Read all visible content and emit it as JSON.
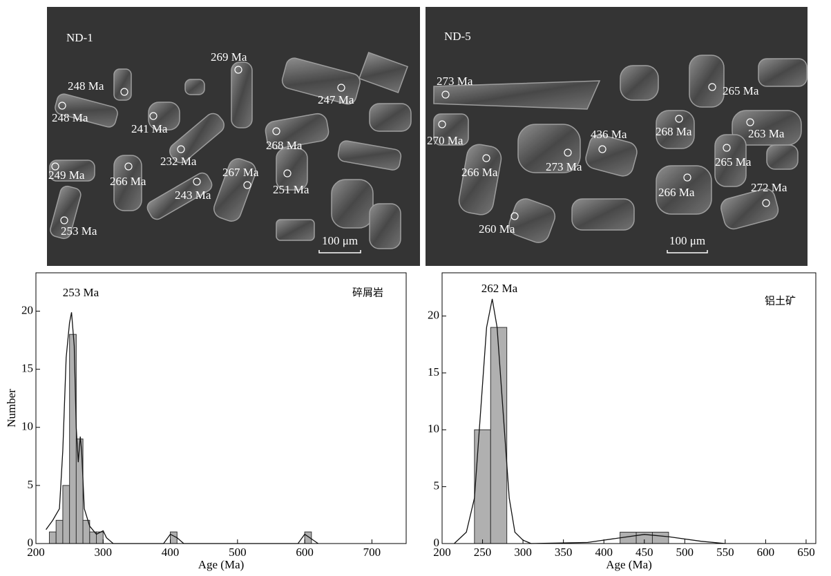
{
  "images": [
    {
      "label": "ND-1",
      "scale": "100 μm",
      "spots": [
        "248 Ma",
        "248 Ma",
        "269 Ma",
        "247 Ma",
        "241 Ma",
        "232 Ma",
        "268 Ma",
        "249 Ma",
        "266 Ma",
        "267 Ma",
        "243 Ma",
        "251 Ma",
        "253 Ma"
      ]
    },
    {
      "label": "ND-5",
      "scale": "100 μm",
      "spots": [
        "273 Ma",
        "265 Ma",
        "270 Ma",
        "268 Ma",
        "263 Ma",
        "436 Ma",
        "273 Ma",
        "266 Ma",
        "265 Ma",
        "266 Ma",
        "272 Ma",
        "260 Ma"
      ]
    }
  ],
  "chart_data": [
    {
      "type": "histogram",
      "annotation": "253 Ma",
      "label": "碎屑岩",
      "xlabel": "Age (Ma)",
      "ylabel": "Number",
      "bins": [
        220,
        230,
        240,
        250,
        260,
        270,
        280,
        290,
        300,
        310,
        320,
        330,
        340,
        350,
        360,
        370,
        380,
        390,
        400,
        410,
        420,
        430,
        440,
        450,
        460,
        470,
        480,
        490,
        500,
        510,
        520,
        530,
        540,
        550,
        560,
        570,
        580,
        590,
        600,
        610
      ],
      "values": [
        1,
        2,
        5,
        18,
        9,
        2,
        1,
        1,
        0,
        0,
        0,
        0,
        0,
        0,
        0,
        0,
        0,
        0,
        1,
        0,
        0,
        0,
        0,
        0,
        0,
        0,
        0,
        0,
        0,
        0,
        0,
        0,
        0,
        0,
        0,
        0,
        0,
        0,
        1
      ],
      "color": "#b0b0b0",
      "kde": {
        "x": [
          215,
          225,
          235,
          240,
          245,
          250,
          253,
          257,
          260,
          263,
          266,
          268,
          272,
          280,
          290,
          300,
          305,
          315,
          390,
          400,
          410,
          420,
          590,
          600,
          610,
          620
        ],
        "y": [
          1.2,
          2,
          3,
          8,
          16,
          19,
          19.9,
          17,
          10,
          7,
          9.2,
          8,
          3,
          1.5,
          0.8,
          1.1,
          0.5,
          0,
          0,
          0.8,
          0.5,
          0,
          0,
          0.8,
          0.4,
          0
        ]
      },
      "xlim": [
        200,
        751
      ],
      "ylim": [
        0,
        23.3
      ],
      "xticks": [
        200,
        300,
        400,
        500,
        600,
        700
      ],
      "yticks": [
        0,
        5,
        10,
        15,
        20
      ]
    },
    {
      "type": "histogram",
      "annotation": "262 Ma",
      "label": "铝土矿",
      "xlabel": "Age (Ma)",
      "bins": [
        240,
        260,
        280,
        300,
        320,
        340,
        360,
        380,
        400,
        420,
        440,
        460,
        480
      ],
      "values": [
        10,
        19,
        0,
        0,
        0,
        0,
        0,
        0,
        0,
        1,
        1,
        1
      ],
      "color": "#b0b0b0",
      "kde": {
        "x": [
          215,
          230,
          240,
          250,
          255,
          262,
          268,
          275,
          283,
          290,
          300,
          310,
          380,
          420,
          450,
          480,
          520,
          550
        ],
        "y": [
          0,
          1,
          4,
          14,
          19,
          21.5,
          19,
          12,
          4,
          1,
          0.3,
          0,
          0.1,
          0.5,
          0.8,
          0.6,
          0.2,
          0
        ]
      },
      "xlim": [
        200,
        662
      ],
      "ylim": [
        0,
        23.8
      ],
      "xticks": [
        200,
        250,
        300,
        350,
        400,
        450,
        500,
        550,
        600,
        650
      ],
      "yticks": [
        0,
        5,
        10,
        15,
        20
      ]
    }
  ]
}
